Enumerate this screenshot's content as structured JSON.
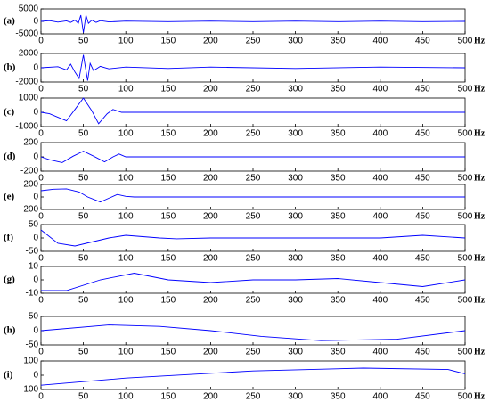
{
  "chart_data": [
    {
      "type": "line",
      "label": "(a)",
      "x_label": "Hz",
      "x": [
        0,
        10,
        20,
        30,
        35,
        40,
        44,
        47,
        50,
        53,
        56,
        60,
        65,
        70,
        80,
        100,
        150,
        200,
        250,
        300,
        350,
        400,
        450,
        500
      ],
      "series": [
        {
          "color": "#0000ff",
          "values": [
            0,
            300,
            -300,
            200,
            -400,
            500,
            -800,
            2500,
            -4500,
            2500,
            -800,
            500,
            -400,
            300,
            -200,
            100,
            -100,
            100,
            -100,
            100,
            -100,
            100,
            -100,
            0
          ]
        }
      ],
      "xlim": [
        0,
        500
      ],
      "xticks": [
        0,
        50,
        100,
        150,
        200,
        250,
        300,
        350,
        400,
        450,
        500
      ],
      "ylim": [
        -5000,
        5000
      ],
      "yticks": [
        -5000,
        0,
        5000
      ]
    },
    {
      "type": "line",
      "label": "(b)",
      "x_label": "Hz",
      "x": [
        0,
        20,
        30,
        35,
        40,
        45,
        48,
        50,
        52,
        55,
        58,
        62,
        70,
        80,
        100,
        150,
        200,
        300,
        400,
        500
      ],
      "series": [
        {
          "color": "#0000ff",
          "values": [
            0,
            150,
            -300,
            500,
            -600,
            -1500,
            500,
            1800,
            300,
            -1800,
            600,
            -400,
            200,
            -150,
            100,
            -100,
            100,
            -100,
            100,
            0
          ]
        }
      ],
      "xlim": [
        0,
        500
      ],
      "xticks": [
        0,
        50,
        100,
        150,
        200,
        250,
        300,
        350,
        400,
        450,
        500
      ],
      "ylim": [
        -2000,
        2000
      ],
      "yticks": [
        -2000,
        0,
        2000
      ]
    },
    {
      "type": "line",
      "label": "(c)",
      "x_label": "Hz",
      "x": [
        0,
        10,
        20,
        30,
        40,
        50,
        60,
        68,
        78,
        85,
        95,
        100,
        200,
        300,
        400,
        500
      ],
      "series": [
        {
          "color": "#0000ff",
          "values": [
            0,
            -100,
            -350,
            -600,
            200,
            1000,
            100,
            -800,
            -100,
            200,
            0,
            0,
            0,
            0,
            0,
            0
          ]
        }
      ],
      "xlim": [
        0,
        500
      ],
      "xticks": [
        0,
        50,
        100,
        150,
        200,
        250,
        300,
        350,
        400,
        450,
        500
      ],
      "ylim": [
        -1000,
        1000
      ],
      "yticks": [
        -1000,
        0,
        1000
      ]
    },
    {
      "type": "line",
      "label": "(d)",
      "x_label": "Hz",
      "x": [
        0,
        10,
        25,
        38,
        50,
        62,
        75,
        85,
        92,
        100,
        200,
        300,
        400,
        500
      ],
      "series": [
        {
          "color": "#0000ff",
          "values": [
            0,
            -40,
            -80,
            10,
            80,
            10,
            -70,
            0,
            40,
            0,
            0,
            0,
            0,
            0
          ]
        }
      ],
      "xlim": [
        0,
        500
      ],
      "xticks": [
        0,
        50,
        100,
        150,
        200,
        250,
        300,
        350,
        400,
        450,
        500
      ],
      "ylim": [
        -200,
        200
      ],
      "yticks": [
        -200,
        0,
        200
      ]
    },
    {
      "type": "line",
      "label": "(e)",
      "x_label": "Hz",
      "x": [
        0,
        15,
        30,
        45,
        55,
        70,
        80,
        90,
        100,
        110,
        200,
        300,
        400,
        500
      ],
      "series": [
        {
          "color": "#0000ff",
          "values": [
            100,
            125,
            130,
            80,
            0,
            -80,
            -20,
            40,
            10,
            0,
            0,
            0,
            0,
            0
          ]
        }
      ],
      "xlim": [
        0,
        500
      ],
      "xticks": [
        0,
        50,
        100,
        150,
        200,
        250,
        300,
        350,
        400,
        450,
        500
      ],
      "ylim": [
        -200,
        200
      ],
      "yticks": [
        -200,
        0,
        200
      ]
    },
    {
      "type": "line",
      "label": "(f)",
      "x_label": "Hz",
      "x": [
        0,
        20,
        40,
        60,
        80,
        100,
        120,
        140,
        160,
        200,
        300,
        400,
        450,
        500
      ],
      "series": [
        {
          "color": "#0000ff",
          "values": [
            30,
            -20,
            -30,
            -15,
            0,
            10,
            5,
            0,
            -3,
            0,
            0,
            0,
            10,
            0
          ]
        }
      ],
      "xlim": [
        0,
        500
      ],
      "xticks": [
        0,
        50,
        100,
        150,
        200,
        250,
        300,
        350,
        400,
        450,
        500
      ],
      "ylim": [
        -50,
        50
      ],
      "yticks": [
        -50,
        0,
        50
      ]
    },
    {
      "type": "line",
      "label": "(g)",
      "x_label": "Hz",
      "x": [
        0,
        30,
        70,
        110,
        150,
        200,
        250,
        300,
        350,
        400,
        450,
        500
      ],
      "series": [
        {
          "color": "#0000ff",
          "values": [
            -8,
            -8,
            0,
            5,
            0,
            -2,
            0,
            0,
            1,
            -2,
            -5,
            0
          ]
        }
      ],
      "xlim": [
        0,
        500
      ],
      "xticks": [
        0,
        50,
        100,
        150,
        200,
        250,
        300,
        350,
        400,
        450,
        500
      ],
      "ylim": [
        -10,
        10
      ],
      "yticks": [
        -10,
        0,
        10
      ]
    },
    {
      "type": "line",
      "label": "(h)",
      "x_label": "Hz",
      "x": [
        0,
        80,
        140,
        200,
        260,
        330,
        420,
        500
      ],
      "series": [
        {
          "color": "#0000ff",
          "values": [
            0,
            20,
            15,
            0,
            -20,
            -35,
            -30,
            0
          ]
        }
      ],
      "xlim": [
        0,
        500
      ],
      "xticks": [
        0,
        50,
        100,
        150,
        200,
        250,
        300,
        350,
        400,
        450,
        500
      ],
      "ylim": [
        -50,
        50
      ],
      "yticks": [
        -50,
        0,
        50
      ]
    },
    {
      "type": "line",
      "label": "(i)",
      "x_label": "Hz",
      "x": [
        0,
        100,
        250,
        380,
        480,
        500
      ],
      "series": [
        {
          "color": "#0000ff",
          "values": [
            -70,
            -20,
            30,
            50,
            40,
            10
          ]
        }
      ],
      "xlim": [
        0,
        500
      ],
      "xticks": [
        0,
        50,
        100,
        150,
        200,
        250,
        300,
        350,
        400,
        450,
        500
      ],
      "ylim": [
        -100,
        100
      ],
      "yticks": [
        -100,
        0,
        100
      ]
    }
  ]
}
